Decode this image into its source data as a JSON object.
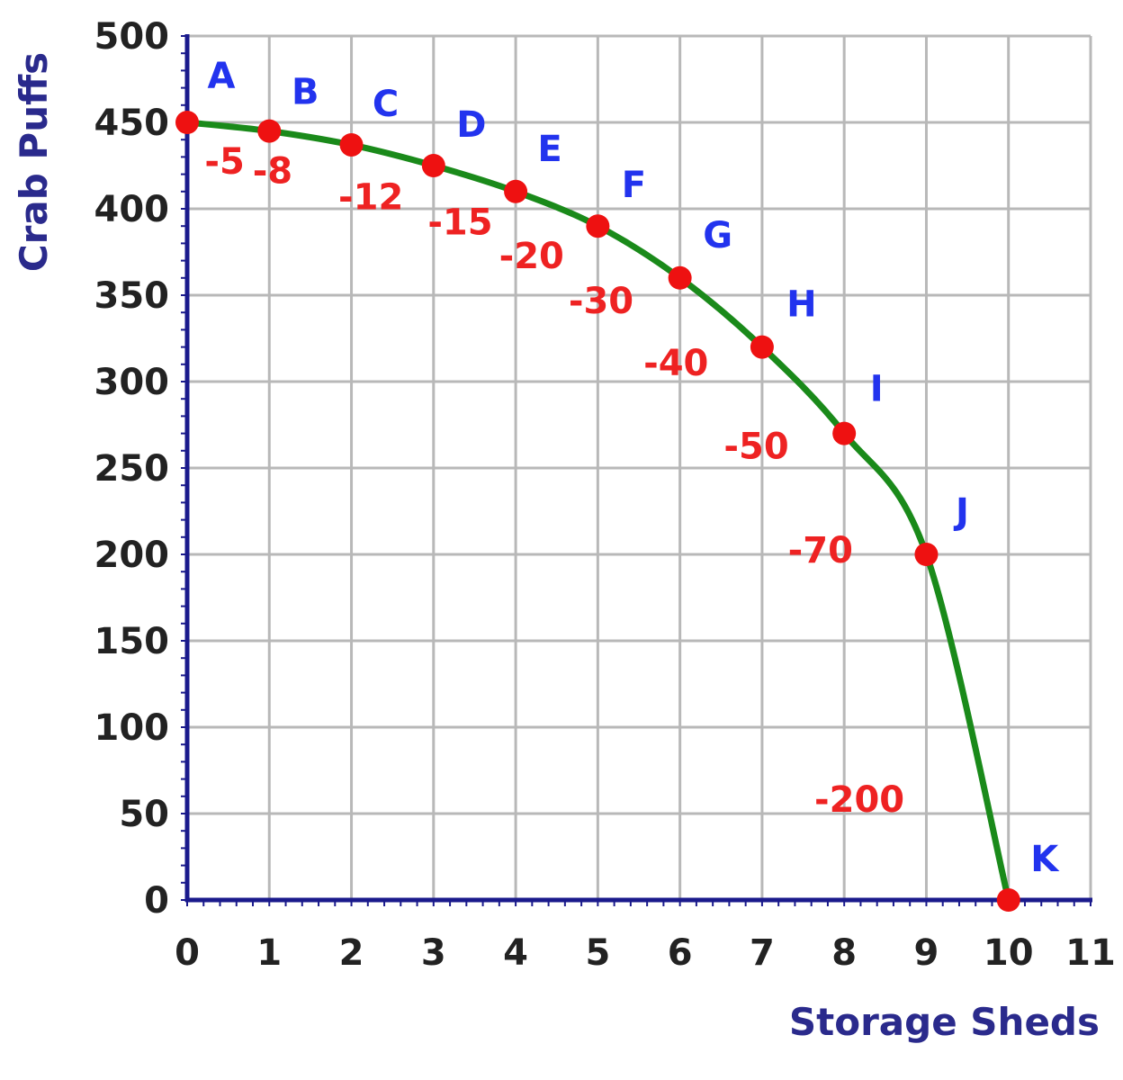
{
  "chart_data": {
    "type": "line",
    "xlabel": "Storage Sheds",
    "ylabel": "Crab Puffs",
    "xlim": [
      0,
      11
    ],
    "ylim": [
      0,
      500
    ],
    "x_ticks": [
      0,
      1,
      2,
      3,
      4,
      5,
      6,
      7,
      8,
      9,
      10,
      11
    ],
    "y_ticks": [
      0,
      50,
      100,
      150,
      200,
      250,
      300,
      350,
      400,
      450,
      500
    ],
    "grid": true,
    "points": [
      {
        "label": "A",
        "x": 0,
        "y": 450
      },
      {
        "label": "B",
        "x": 1,
        "y": 445
      },
      {
        "label": "C",
        "x": 2,
        "y": 437
      },
      {
        "label": "D",
        "x": 3,
        "y": 425
      },
      {
        "label": "E",
        "x": 4,
        "y": 410
      },
      {
        "label": "F",
        "x": 5,
        "y": 390
      },
      {
        "label": "G",
        "x": 6,
        "y": 360
      },
      {
        "label": "H",
        "x": 7,
        "y": 320
      },
      {
        "label": "I",
        "x": 8,
        "y": 270
      },
      {
        "label": "J",
        "x": 9,
        "y": 200
      },
      {
        "label": "K",
        "x": 10,
        "y": 0
      }
    ],
    "slopes": [
      "-5",
      "-8",
      "-12",
      "-15",
      "-20",
      "-30",
      "-40",
      "-50",
      "-70",
      "-200"
    ],
    "colors": {
      "curve": "#1a8a1a",
      "point": "#ee1111",
      "point_label": "#2233ee",
      "slope_label": "#ee2222",
      "axis": "#1a1a8c"
    }
  }
}
